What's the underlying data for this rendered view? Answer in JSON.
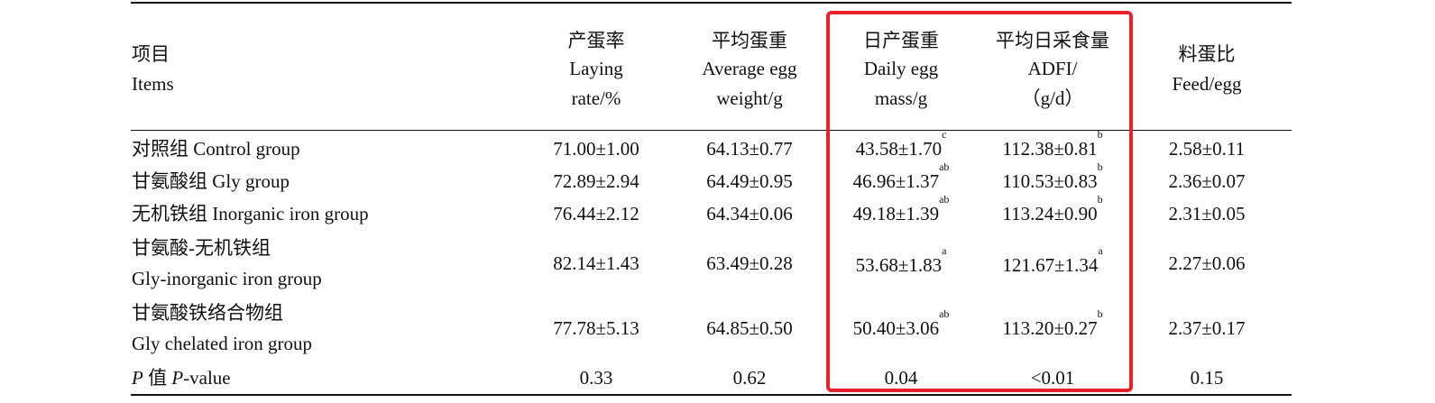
{
  "table": {
    "header": {
      "items_cn": "项目",
      "items_en": "Items",
      "cols": [
        {
          "l1": "产蛋率",
          "l2": "Laying",
          "l3": "rate/%"
        },
        {
          "l1": "平均蛋重",
          "l2": "Average egg",
          "l3": "weight/g"
        },
        {
          "l1": "日产蛋重",
          "l2": "Daily egg",
          "l3": "mass/g"
        },
        {
          "l1": "平均日采食量",
          "l2": "ADFI/",
          "l3": "（g/d）"
        },
        {
          "l1": "料蛋比",
          "l2": "Feed/egg",
          "l3": ""
        }
      ]
    },
    "rows": [
      {
        "item1": "对照组 Control group",
        "item2": "",
        "v": [
          "71.00±1.00",
          "64.13±0.77",
          "43.58±1.70",
          "112.38±0.81",
          "2.58±0.11"
        ],
        "sup": [
          "",
          "",
          "c",
          "b",
          ""
        ]
      },
      {
        "item1": "甘氨酸组 Gly group",
        "item2": "",
        "v": [
          "72.89±2.94",
          "64.49±0.95",
          "46.96±1.37",
          "110.53±0.83",
          "2.36±0.07"
        ],
        "sup": [
          "",
          "",
          "ab",
          "b",
          ""
        ]
      },
      {
        "item1": "无机铁组 Inorganic iron group",
        "item2": "",
        "v": [
          "76.44±2.12",
          "64.34±0.06",
          "49.18±1.39",
          "113.24±0.90",
          "2.31±0.05"
        ],
        "sup": [
          "",
          "",
          "ab",
          "b",
          ""
        ]
      },
      {
        "item1": "甘氨酸-无机铁组",
        "item2": "Gly-inorganic iron group",
        "v": [
          "82.14±1.43",
          "63.49±0.28",
          "53.68±1.83",
          "121.67±1.34",
          "2.27±0.06"
        ],
        "sup": [
          "",
          "",
          "a",
          "a",
          ""
        ]
      },
      {
        "item1": "甘氨酸铁络合物组",
        "item2": "Gly chelated iron group",
        "v": [
          "77.78±5.13",
          "64.85±0.50",
          "50.40±3.06",
          "113.20±0.27",
          "2.37±0.17"
        ],
        "sup": [
          "",
          "",
          "ab",
          "b",
          ""
        ]
      }
    ],
    "pvalue": {
      "label_p1": "P",
      "label_cn": " 值 ",
      "label_p2": "P",
      "label_rest": "-value",
      "v": [
        "0.33",
        "0.62",
        "0.04",
        "<0.01",
        "0.15"
      ]
    }
  },
  "highlight_color": "#e8202a"
}
